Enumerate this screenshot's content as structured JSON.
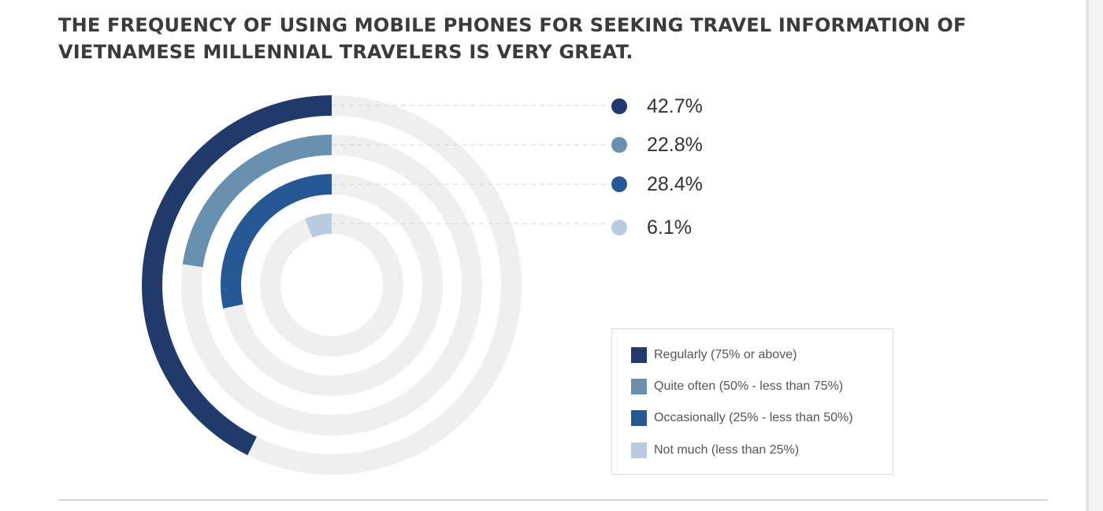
{
  "header": {
    "title": "THE FREQUENCY OF USING MOBILE PHONES FOR SEEKING TRAVEL INFORMATION OF VIETNAMESE MILLENNIAL TRAVELERS IS VERY GREAT."
  },
  "chart_data": {
    "type": "radial-bar",
    "title": "THE FREQUENCY OF USING MOBILE PHONES FOR SEEKING TRAVEL INFORMATION OF VIETNAMESE MILLENNIAL TRAVELERS IS VERY GREAT.",
    "unit": "%",
    "track_color": "#efefef",
    "legend_position": "bottom-right",
    "series": [
      {
        "name": "Regularly (75% or above)",
        "value": 42.7,
        "label": "42.7%",
        "color": "#203a6b"
      },
      {
        "name": "Quite often (50% - less than 75%)",
        "value": 22.8,
        "label": "22.8%",
        "color": "#6a90b0"
      },
      {
        "name": "Occasionally (25% - less than 50%)",
        "value": 28.4,
        "label": "28.4%",
        "color": "#275896"
      },
      {
        "name": "Not much (less than 25%)",
        "value": 6.1,
        "label": "6.1%",
        "color": "#b9cbe0"
      }
    ]
  }
}
